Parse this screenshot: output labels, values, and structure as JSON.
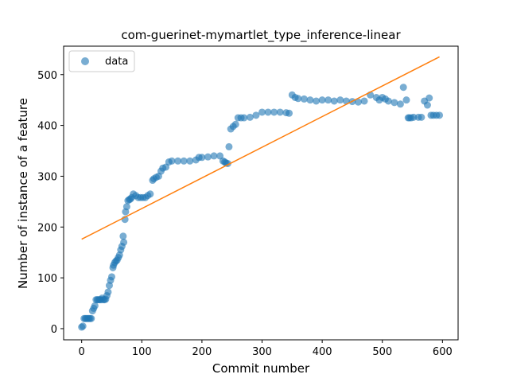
{
  "chart_data": {
    "type": "scatter",
    "title": "com-guerinet-mymartlet_type_inference-linear",
    "xlabel": "Commit number",
    "ylabel": "Number of instance of a feature",
    "xlim": [
      -30,
      626
    ],
    "ylim": [
      -22,
      556
    ],
    "xticks": [
      0,
      100,
      200,
      300,
      400,
      500,
      600
    ],
    "yticks": [
      0,
      100,
      200,
      300,
      400,
      500
    ],
    "legend": {
      "position": "top-left",
      "entries": [
        "data"
      ]
    },
    "colors": {
      "data": "#1f77b4",
      "fit": "#ff7f0e"
    },
    "series": [
      {
        "name": "data",
        "kind": "scatter",
        "x": [
          0,
          2,
          4,
          6,
          8,
          10,
          12,
          14,
          16,
          18,
          20,
          22,
          24,
          26,
          28,
          30,
          32,
          34,
          36,
          38,
          40,
          42,
          44,
          46,
          48,
          50,
          52,
          53,
          55,
          57,
          59,
          61,
          63,
          65,
          67,
          69,
          70,
          72,
          73,
          75,
          77,
          79,
          81,
          83,
          86,
          90,
          94,
          98,
          102,
          106,
          110,
          114,
          118,
          120,
          124,
          128,
          132,
          135,
          140,
          145,
          150,
          160,
          170,
          180,
          190,
          195,
          200,
          210,
          220,
          230,
          235,
          238,
          240,
          243,
          245,
          248,
          252,
          256,
          260,
          265,
          270,
          280,
          290,
          300,
          310,
          320,
          330,
          340,
          345,
          350,
          355,
          360,
          370,
          380,
          390,
          400,
          410,
          420,
          430,
          440,
          450,
          460,
          470,
          480,
          490,
          495,
          500,
          505,
          510,
          520,
          530,
          535,
          540,
          543,
          545,
          548,
          552,
          560,
          565,
          570,
          575,
          578,
          581,
          585,
          590,
          595
        ],
        "y": [
          3,
          5,
          20,
          20,
          20,
          20,
          20,
          20,
          20,
          35,
          40,
          45,
          57,
          57,
          57,
          57,
          57,
          60,
          57,
          57,
          58,
          65,
          72,
          85,
          95,
          102,
          120,
          125,
          130,
          133,
          135,
          140,
          145,
          155,
          162,
          182,
          170,
          215,
          230,
          240,
          252,
          254,
          255,
          258,
          265,
          262,
          258,
          258,
          258,
          258,
          262,
          265,
          292,
          295,
          298,
          300,
          310,
          316,
          318,
          328,
          330,
          330,
          330,
          330,
          332,
          337,
          337,
          338,
          340,
          340,
          330,
          328,
          326,
          325,
          358,
          393,
          398,
          402,
          415,
          415,
          415,
          416,
          420,
          426,
          426,
          426,
          426,
          425,
          424,
          460,
          455,
          453,
          452,
          450,
          448,
          450,
          450,
          448,
          450,
          448,
          447,
          446,
          448,
          460,
          455,
          450,
          455,
          452,
          448,
          445,
          442,
          475,
          450,
          415,
          415,
          415,
          416,
          416,
          416,
          448,
          440,
          454,
          420,
          420,
          420,
          420
        ]
      },
      {
        "name": "",
        "kind": "line",
        "x": [
          0,
          595
        ],
        "y": [
          176,
          535
        ]
      }
    ]
  }
}
